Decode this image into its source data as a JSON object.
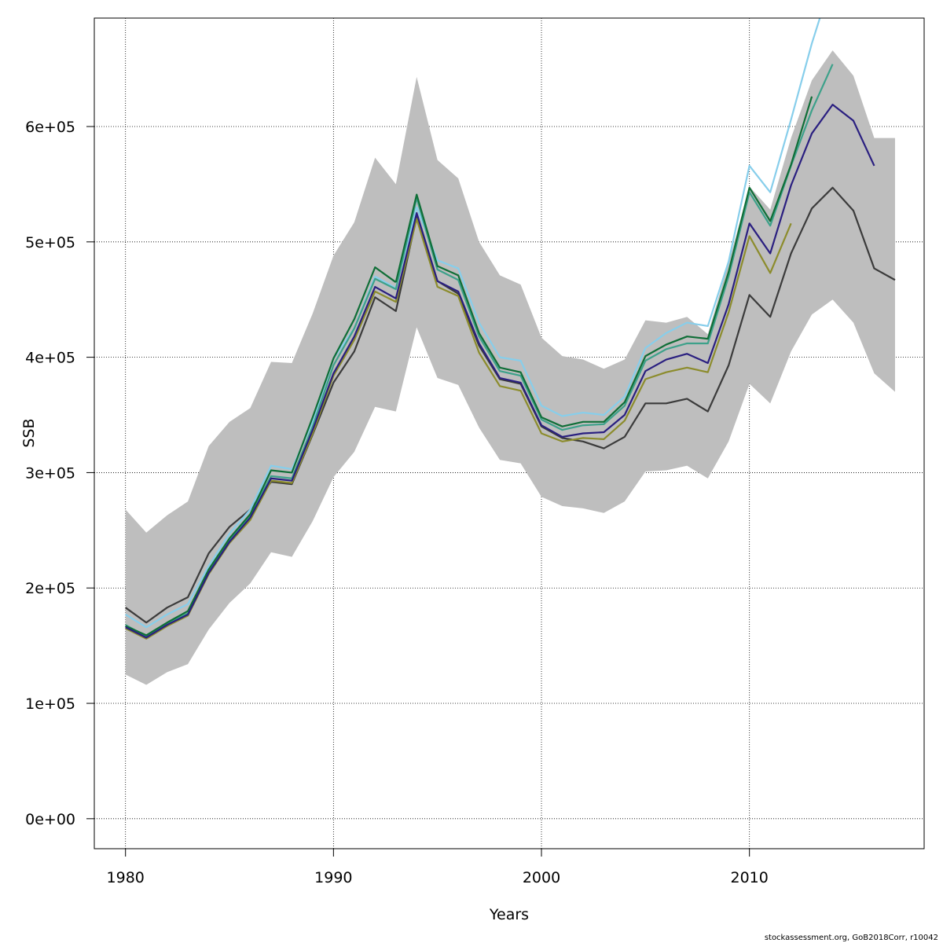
{
  "chart_data": {
    "type": "line",
    "xlabel": "Years",
    "ylabel": "SSB",
    "xlim": [
      1978.5,
      2018.4
    ],
    "ylim": [
      -26000,
      694000
    ],
    "x_ticks": [
      1980,
      1990,
      2000,
      2010
    ],
    "y_ticks": [
      0,
      100000,
      200000,
      300000,
      400000,
      500000,
      600000
    ],
    "y_tick_labels": [
      "0e+00",
      "1e+05",
      "2e+05",
      "3e+05",
      "4e+05",
      "5e+05",
      "6e+05"
    ],
    "grid": true,
    "credit": "stockassessment.org, GoB2018Corr, r10042",
    "confidence_band": {
      "color": "#bebebe",
      "x": [
        1980,
        1981,
        1982,
        1983,
        1984,
        1985,
        1986,
        1987,
        1988,
        1989,
        1990,
        1991,
        1992,
        1993,
        1994,
        1995,
        1996,
        1997,
        1998,
        1999,
        2000,
        2001,
        2002,
        2003,
        2004,
        2005,
        2006,
        2007,
        2008,
        2009,
        2010,
        2011,
        2012,
        2013,
        2014,
        2015,
        2016,
        2017
      ],
      "upper": [
        268000,
        248000,
        263000,
        275000,
        323000,
        344000,
        356000,
        396000,
        395000,
        438000,
        488000,
        517000,
        573000,
        550000,
        643000,
        571000,
        555000,
        500000,
        471000,
        463000,
        417000,
        401000,
        398000,
        390000,
        398000,
        432000,
        430000,
        435000,
        420000,
        482000,
        548000,
        528000,
        590000,
        640000,
        666000,
        644000,
        590000,
        590000
      ],
      "lower": [
        125000,
        116000,
        127000,
        134000,
        164000,
        187000,
        204000,
        231000,
        227000,
        258000,
        296000,
        318000,
        357000,
        353000,
        426000,
        382000,
        376000,
        339000,
        311000,
        308000,
        279000,
        271000,
        269000,
        265000,
        275000,
        301000,
        302000,
        306000,
        295000,
        327000,
        377000,
        360000,
        405000,
        437000,
        450000,
        430000,
        386000,
        370000
      ]
    },
    "series": [
      {
        "color": "#3b3b3b",
        "x": [
          1980,
          1981,
          1982,
          1983,
          1984,
          1985,
          1986,
          1987,
          1988,
          1989,
          1990,
          1991,
          1992,
          1993,
          1994,
          1995,
          1996,
          1997,
          1998,
          1999,
          2000,
          2001,
          2002,
          2003,
          2004,
          2005,
          2006,
          2007,
          2008,
          2009,
          2010,
          2011,
          2012,
          2013,
          2014,
          2015,
          2016,
          2017
        ],
        "values": [
          183000,
          170000,
          183000,
          192000,
          230000,
          253000,
          268000,
          292000,
          290000,
          333000,
          378000,
          405000,
          452000,
          440000,
          522000,
          466000,
          455000,
          410000,
          381000,
          377000,
          340000,
          330000,
          327000,
          321000,
          331000,
          360000,
          360000,
          364000,
          353000,
          393000,
          454000,
          435000,
          490000,
          529000,
          547000,
          527000,
          477000,
          467000
        ]
      },
      {
        "color": "#87ceeb",
        "x": [
          1980,
          1981,
          1982,
          1983,
          1984,
          1985,
          1986,
          1987,
          1988,
          1989,
          1990,
          1991,
          1992,
          1993,
          1994,
          1995,
          1996,
          1997,
          1998,
          1999,
          2000,
          2001,
          2002,
          2003,
          2004,
          2005,
          2006,
          2007,
          2008,
          2009,
          2010,
          2011,
          2012,
          2013,
          2014
        ],
        "values": [
          177000,
          166000,
          177000,
          186000,
          219000,
          247000,
          268000,
          306000,
          303000,
          344000,
          399000,
          425000,
          470000,
          460000,
          530000,
          484000,
          477000,
          430000,
          400000,
          397000,
          358000,
          349000,
          352000,
          350000,
          366000,
          408000,
          421000,
          430000,
          427000,
          483000,
          566000,
          543000,
          606000,
          672000,
          729000
        ]
      },
      {
        "color": "#3da18a",
        "x": [
          1980,
          1981,
          1982,
          1983,
          1984,
          1985,
          1986,
          1987,
          1988,
          1989,
          1990,
          1991,
          1992,
          1993,
          1994,
          1995,
          1996,
          1997,
          1998,
          1999,
          2000,
          2001,
          2002,
          2003,
          2004,
          2005,
          2006,
          2007,
          2008,
          2009,
          2010,
          2011,
          2012,
          2013,
          2014
        ],
        "values": [
          168000,
          158000,
          169000,
          178000,
          215000,
          242000,
          263000,
          297000,
          295000,
          340000,
          393000,
          425000,
          468000,
          459000,
          538000,
          476000,
          467000,
          418000,
          388000,
          384000,
          346000,
          337000,
          341000,
          342000,
          358000,
          397000,
          407000,
          412000,
          412000,
          470000,
          543000,
          514000,
          566000,
          614000,
          654000
        ]
      },
      {
        "color": "#0f6e37",
        "x": [
          1980,
          1981,
          1982,
          1983,
          1984,
          1985,
          1986,
          1987,
          1988,
          1989,
          1990,
          1991,
          1992,
          1993
        ],
        "values": [
          167000,
          159000,
          170000,
          180000,
          216000,
          243000,
          264000,
          302000,
          300000,
          348000,
          399000,
          433000,
          478000,
          465000
        ]
      },
      {
        "color": "#8c8c2c",
        "x": [
          1980,
          1981,
          1982,
          1983,
          1984,
          1985,
          1986,
          1987,
          1988,
          1989,
          1990,
          1991,
          1992,
          1993,
          1994,
          1995,
          1996,
          1997,
          1998,
          1999,
          2000,
          2001,
          2002,
          2003,
          2004,
          2005,
          2006,
          2007,
          2008,
          2009,
          2010,
          2011,
          2012
        ],
        "values": [
          165000,
          156000,
          167000,
          176000,
          212000,
          239000,
          259000,
          293000,
          291000,
          334000,
          384000,
          415000,
          457000,
          448000,
          520000,
          461000,
          453000,
          404000,
          375000,
          371000,
          334000,
          327000,
          330000,
          329000,
          345000,
          381000,
          387000,
          391000,
          387000,
          439000,
          505000,
          473000,
          516000
        ]
      },
      {
        "color": "#2a1f80",
        "x": [
          1980,
          1981,
          1982,
          1983,
          1984,
          1985,
          1986,
          1987,
          1988,
          1989,
          1990,
          1991,
          1992,
          1993,
          1994,
          1995,
          1996,
          1997,
          1998,
          1999,
          2000,
          2001,
          2002,
          2003,
          2004,
          2005,
          2006,
          2007,
          2008,
          2009,
          2010,
          2011,
          2012,
          2013,
          2014,
          2015,
          2016
        ],
        "values": [
          166000,
          157000,
          168000,
          177000,
          213000,
          240000,
          261000,
          295000,
          293000,
          337000,
          386000,
          418000,
          461000,
          451000,
          525000,
          466000,
          457000,
          412000,
          382000,
          378000,
          341000,
          331000,
          334000,
          335000,
          350000,
          388000,
          398000,
          403000,
          395000,
          446000,
          516000,
          490000,
          549000,
          594000,
          619000,
          605000,
          566000
        ]
      },
      {
        "color": "#0f6e37",
        "x": [
          1993,
          1994,
          1995,
          1996,
          1997,
          1998,
          1999,
          2000,
          2001,
          2002,
          2003,
          2004,
          2005,
          2006,
          2007,
          2008,
          2009,
          2010,
          2011,
          2012,
          2013
        ],
        "values": [
          465000,
          541000,
          479000,
          471000,
          421000,
          391000,
          387000,
          348000,
          340000,
          344000,
          344000,
          361000,
          401000,
          411000,
          418000,
          416000,
          474000,
          547000,
          518000,
          567000,
          626000
        ]
      }
    ]
  }
}
